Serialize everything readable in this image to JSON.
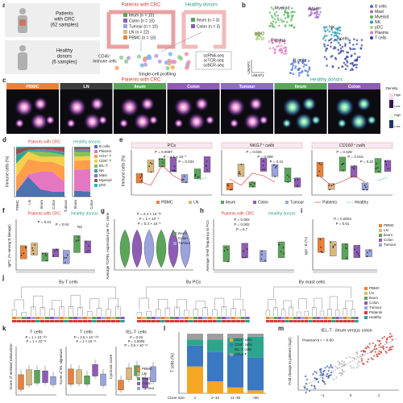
{
  "a": {
    "letter": "a",
    "patients": [
      "Patients",
      "with CRC",
      "(62 samples)"
    ],
    "healthy": [
      "Healthy",
      "donors",
      "(6 samples)"
    ],
    "group_patients": "Patients with CRC",
    "group_healthy": "Healthy donors",
    "legend": [
      "Ileum (n = 10)",
      "Colon (n = 10)",
      "Tumour (n = 10)",
      "LN (n = 22)",
      "PBMC (n = 10)"
    ],
    "legend_healthy": [
      "Ileum (n = 3)",
      "Colon (n = 3)"
    ],
    "cells": [
      "CD45⁺",
      "immune cells"
    ],
    "assays": [
      "scRNA-seq",
      "scTCR-seq",
      "scBCR-seq"
    ],
    "caption": "Single-cell profiling"
  },
  "b": {
    "letter": "b",
    "clusters": [
      "Myeloid",
      "Mast",
      "pDC",
      "Plasma",
      "NK",
      "T cells",
      "B cells"
    ],
    "legend": [
      "B cells",
      "Mast",
      "Myeloid",
      "NK",
      "pDC",
      "Plasma",
      "T cells"
    ],
    "x_axis": "UMAP1",
    "y_axis": "UMAP2"
  },
  "c": {
    "letter": "c",
    "group_patients": "Patients with CRC",
    "group_healthy": "Healthy donors",
    "tiles": [
      "PBMC",
      "LN",
      "Ileum",
      "Colon",
      "Tumour",
      "Ileum",
      "Colon"
    ],
    "legend_title": "Density",
    "legend_levels": [
      "High",
      "Low",
      "High",
      "Low"
    ]
  },
  "d": {
    "letter": "d",
    "group_patients": "Patients with CRC",
    "group_healthy": "Healthy donors",
    "y_axis": "Immune cells (%)",
    "categories": [
      "PBMC",
      "LN",
      "Ileum",
      "Colon",
      "Tumour",
      "Ileum",
      "Colon"
    ],
    "legend": [
      "B cells",
      "Plasma",
      "CD4⁺ T",
      "CD8⁺ T",
      "IEL-T",
      "NK",
      "Mast",
      "Myeloid",
      "pDC"
    ]
  },
  "e": {
    "letter": "e",
    "y_axis": "Immune cells (%)",
    "panels": [
      {
        "title": "PCs",
        "p": [
          "P = 0.0087",
          "P = 4.5 × 10⁻⁵",
          "P = 0.034"
        ]
      },
      {
        "title": "NKG7⁺ cells",
        "p": [
          "P = 0.026",
          "P = 0.008",
          "P = 0.41"
        ]
      },
      {
        "title": "CD160⁺ cells",
        "p": [
          "P = 0.028",
          "P = 0.016",
          "P = 0.22"
        ]
      }
    ],
    "legend": [
      "PBMC",
      "LN",
      "Ileum",
      "Colon",
      "Tumour",
      "Patients",
      "Healthy"
    ]
  },
  "f": {
    "letter": "f",
    "group_patients": "Patients with CRC",
    "group_healthy": "Healthy donors",
    "y_axis": "IgPC (% among B lineage)",
    "p": [
      "P = 0.01",
      "P = 0.04",
      "NS"
    ]
  },
  "g": {
    "letter": "g",
    "y_axis": "Average TGFB1 expression per PC clone",
    "p": [
      "P = 2.4 × 10⁻²⁶",
      "P = 1 × 10⁻⁹",
      "P = 5.3 × 10⁻⁸"
    ],
    "legend": [
      "Ileum",
      "Colon",
      "Tumour"
    ]
  },
  "h": {
    "letter": "h",
    "group_patients": "Patients with CRC",
    "group_healthy": "Healthy donors",
    "y_axis": "Average SHM frequency in PCs",
    "p": [
      "P = 0.002",
      "P = 0.002",
      "P = 0.7"
    ]
  },
  "i": {
    "letter": "i",
    "y_axis": "IgG⁺ B (%)",
    "p": [
      "P = 0.0004",
      "P = 0.01"
    ],
    "legend": [
      "PBMC",
      "LN",
      "Ileum",
      "Colon",
      "Tumour"
    ]
  },
  "j": {
    "letter": "j",
    "titles": [
      "By T cells",
      "By PCs",
      "By mast cells"
    ],
    "legend": [
      "PBMC",
      "LN",
      "Ileum",
      "Colon",
      "Tumour",
      "Patients",
      "Healthy"
    ]
  },
  "k": {
    "letter": "k",
    "panels": [
      {
        "title": "T cells",
        "y_axis": "Score of terminal exhaustion",
        "p": [
          "P = 1 × 10⁻¹⁰⁴",
          "P = 1 × 10⁻³²"
        ]
      },
      {
        "title": "T cells",
        "y_axis": "Score of IEL signature",
        "p": [
          "P = 2.5 × 10⁻¹⁰⁸",
          "P = 1 × 10⁻¹⁵"
        ]
      },
      {
        "title": "IEL-T cells",
        "y_axis": "Cytotoxic score",
        "p": [
          "P = 0.03",
          "P = 0.0005",
          "P = 3.9 × 10⁻⁵⁸"
        ]
      }
    ],
    "legend": [
      "PBMC",
      "LN",
      "Ileum",
      "Colon",
      "Tumour"
    ]
  },
  "l": {
    "letter": "l",
    "y_axis": "T cells (%)",
    "legend": [
      "CD4⁺ cells",
      "CD8⁺ cells",
      "IEL-T cells",
      "Other T"
    ],
    "x_title": "Clone size:",
    "x_labels": [
      "1",
      "2–10",
      "11–30",
      ">30"
    ]
  },
  "m": {
    "letter": "m",
    "title": "IEL-T : ileum versus colon",
    "stat": "Pearson's r = 0.80",
    "y_axis": "Fold change in patients (log2)",
    "x_ticks": [
      "−1",
      "0",
      "1"
    ]
  }
}
